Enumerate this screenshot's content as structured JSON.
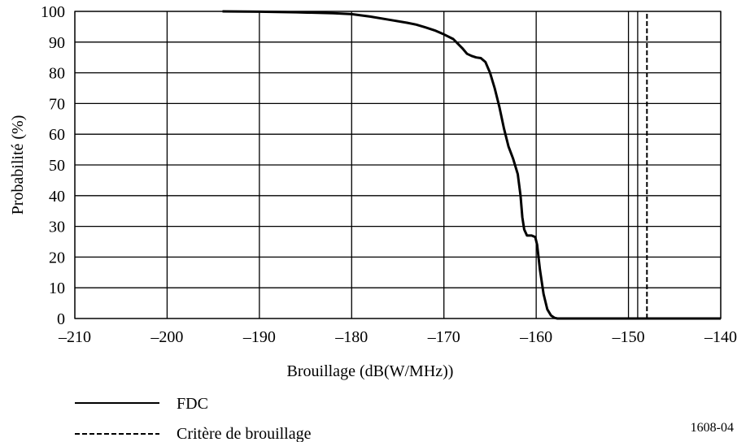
{
  "chart_data": {
    "type": "line",
    "title": "",
    "xlabel": "Brouillage (dB(W/MHz))",
    "ylabel": "Probabilité (%)",
    "xlim": [
      -210,
      -140
    ],
    "ylim": [
      0,
      100
    ],
    "xticks": [
      -210,
      -200,
      -190,
      -180,
      -170,
      -160,
      -150,
      -140
    ],
    "xtick_labels": [
      "–210",
      "–200",
      "–190",
      "–180",
      "–170",
      "–160",
      "–150",
      "–140"
    ],
    "yticks": [
      0,
      10,
      20,
      30,
      40,
      50,
      60,
      70,
      80,
      90,
      100
    ],
    "ytick_labels": [
      "0",
      "10",
      "20",
      "30",
      "40",
      "50",
      "60",
      "70",
      "80",
      "90",
      "100"
    ],
    "grid": true,
    "extra_vertical_gridline": -149,
    "legend_position": "bottom-left",
    "series": [
      {
        "name": "FDC",
        "style": "solid",
        "color": "#000000",
        "x": [
          -194,
          -190,
          -186,
          -182,
          -180,
          -178,
          -176,
          -174,
          -173,
          -172,
          -171,
          -170,
          -169,
          -168,
          -167.5,
          -167,
          -166.5,
          -166,
          -165.5,
          -165,
          -164.5,
          -164,
          -163.5,
          -163,
          -162.5,
          -162,
          -161.7,
          -161.5,
          -161.3,
          -161,
          -160.5,
          -160.1,
          -159.9,
          -159.6,
          -159.2,
          -158.8,
          -158.4,
          -158,
          -157.7,
          -157.4,
          -150,
          -140
        ],
        "y": [
          100,
          99.9,
          99.7,
          99.4,
          99.1,
          98.3,
          97.3,
          96.3,
          95.7,
          94.8,
          93.8,
          92.5,
          91,
          88,
          86.2,
          85.5,
          85,
          84.8,
          83.5,
          80,
          75,
          69,
          62,
          56,
          52,
          47,
          40,
          33,
          29,
          27,
          27,
          26.5,
          24,
          16,
          8,
          3,
          1,
          0.2,
          0,
          0,
          0,
          0
        ]
      },
      {
        "name": "Critère de brouillage",
        "style": "dashed",
        "color": "#000000",
        "x": [
          -148,
          -148
        ],
        "y": [
          0,
          100
        ]
      }
    ]
  },
  "legend": {
    "items": [
      {
        "label": "FDC",
        "style": "solid"
      },
      {
        "label": "Critère de brouillage",
        "style": "dashed"
      }
    ]
  },
  "figure_id": "1608-04"
}
